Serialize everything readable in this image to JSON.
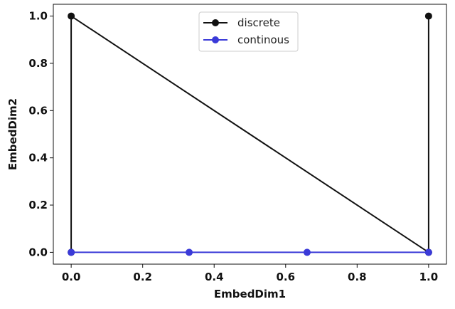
{
  "chart_data": {
    "type": "line",
    "xlabel": "EmbedDim1",
    "ylabel": "EmbedDim2",
    "xlim": [
      -0.05,
      1.05
    ],
    "ylim": [
      -0.05,
      1.05
    ],
    "xticks": [
      0.0,
      0.2,
      0.4,
      0.6,
      0.8,
      1.0
    ],
    "xtick_labels": [
      "0.0",
      "0.2",
      "0.4",
      "0.6",
      "0.8",
      "1.0"
    ],
    "yticks": [
      0.0,
      0.2,
      0.4,
      0.6,
      0.8,
      1.0
    ],
    "ytick_labels": [
      "0.0",
      "0.2",
      "0.4",
      "0.6",
      "0.8",
      "1.0"
    ],
    "grid": false,
    "legend_position": "top-center",
    "series": [
      {
        "name": "discrete",
        "color": "#111111",
        "x": [
          0.0,
          0.0,
          1.0,
          1.0
        ],
        "y": [
          0.0,
          1.0,
          0.0,
          1.0
        ]
      },
      {
        "name": "continous",
        "color": "#3a3ad8",
        "x": [
          0.0,
          0.33,
          0.66,
          1.0
        ],
        "y": [
          0.0,
          0.0,
          0.0,
          0.0
        ]
      }
    ]
  }
}
